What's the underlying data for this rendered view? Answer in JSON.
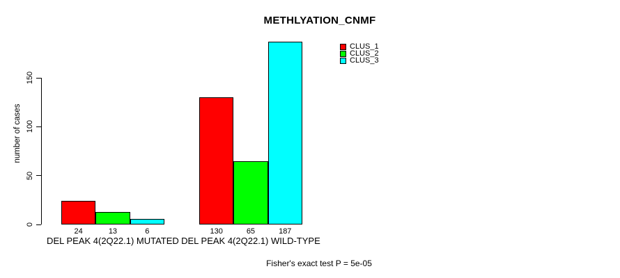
{
  "chart_data": {
    "type": "bar",
    "title": "METHLYATION_CNMF",
    "xlabel": "",
    "ylabel": "number of cases",
    "ylim": [
      0,
      190
    ],
    "yticks": [
      0,
      50,
      100,
      150
    ],
    "grid": false,
    "legend_position": "top-right",
    "show_bar_value_labels": true,
    "categories": [
      "DEL PEAK 4(2Q22.1) MUTATED",
      "DEL PEAK 4(2Q22.1) WILD-TYPE"
    ],
    "series": [
      {
        "name": "CLUS_1",
        "color": "#ff0000",
        "values": [
          24,
          130
        ]
      },
      {
        "name": "CLUS_2",
        "color": "#00ff00",
        "values": [
          13,
          65
        ]
      },
      {
        "name": "CLUS_3",
        "color": "#00ffff",
        "values": [
          6,
          187
        ]
      }
    ],
    "annotation": "Fisher's exact test P = 5e-05",
    "colors": {
      "background": "#ffffff",
      "text": "#000000",
      "bar_border": "#000000",
      "axis": "#000000"
    }
  }
}
